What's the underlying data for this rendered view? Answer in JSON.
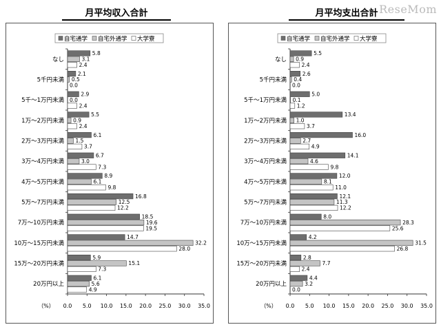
{
  "brand": "ReseMom",
  "chart_data": [
    {
      "type": "bar",
      "orientation": "horizontal",
      "title": "月平均収入合計",
      "categories": [
        "なし",
        "5千円未満",
        "5千～1万円未満",
        "1万～2万円未満",
        "2万～3万円未満",
        "3万～4万円未満",
        "4万～5万円未満",
        "5万～7万円未満",
        "7万～10万円未満",
        "10万～15万円未満",
        "15万～20万円未満",
        "20万円以上"
      ],
      "series": [
        {
          "name": "自宅通学",
          "color": "#6e6e6e",
          "values": [
            5.8,
            2.1,
            2.9,
            5.5,
            6.1,
            6.7,
            8.9,
            16.8,
            18.5,
            14.7,
            5.9,
            6.1
          ]
        },
        {
          "name": "自宅外通学",
          "color": "#c4c4c4",
          "values": [
            3.1,
            0.5,
            0.0,
            0.9,
            1.5,
            3.0,
            6.1,
            12.5,
            19.6,
            32.2,
            15.1,
            5.6
          ]
        },
        {
          "name": "大学寮",
          "color": "#ffffff",
          "values": [
            2.4,
            0.0,
            2.4,
            2.4,
            3.7,
            7.3,
            9.8,
            12.2,
            19.5,
            28.0,
            7.3,
            4.9
          ]
        }
      ],
      "xlim": [
        0,
        35
      ],
      "xticks": [
        "0.0",
        "5.0",
        "10.0",
        "15.0",
        "20.0",
        "25.0",
        "30.0",
        "35.0"
      ],
      "unit_label": "（%）",
      "legend_position": "top"
    },
    {
      "type": "bar",
      "orientation": "horizontal",
      "title": "月平均支出合計",
      "categories": [
        "なし",
        "5千円未満",
        "5千～1万円未満",
        "1万～2万円未満",
        "2万～3万円未満",
        "3万～4万円未満",
        "4万～5万円未満",
        "5万～7万円未満",
        "7万～10万円未満",
        "10万～15万円未満",
        "15万～20万円未満",
        "20万円以上"
      ],
      "series": [
        {
          "name": "自宅通学",
          "color": "#6e6e6e",
          "values": [
            5.5,
            2.6,
            5.0,
            13.4,
            16.0,
            14.1,
            12.0,
            12.1,
            8.0,
            4.2,
            2.8,
            4.4
          ]
        },
        {
          "name": "自宅外通学",
          "color": "#c4c4c4",
          "values": [
            0.9,
            0.4,
            0.1,
            1.0,
            2.7,
            4.6,
            8.1,
            11.3,
            28.3,
            31.5,
            7.7,
            3.2
          ]
        },
        {
          "name": "大学寮",
          "color": "#ffffff",
          "values": [
            2.4,
            0.0,
            1.2,
            3.7,
            4.9,
            9.8,
            11.0,
            12.2,
            25.6,
            26.8,
            2.4,
            0.0
          ]
        }
      ],
      "xlim": [
        0,
        35
      ],
      "xticks": [
        "0.0",
        "5.0",
        "10.0",
        "15.0",
        "20.0",
        "25.0",
        "30.0",
        "35.0"
      ],
      "unit_label": "（%）",
      "legend_position": "top"
    }
  ]
}
